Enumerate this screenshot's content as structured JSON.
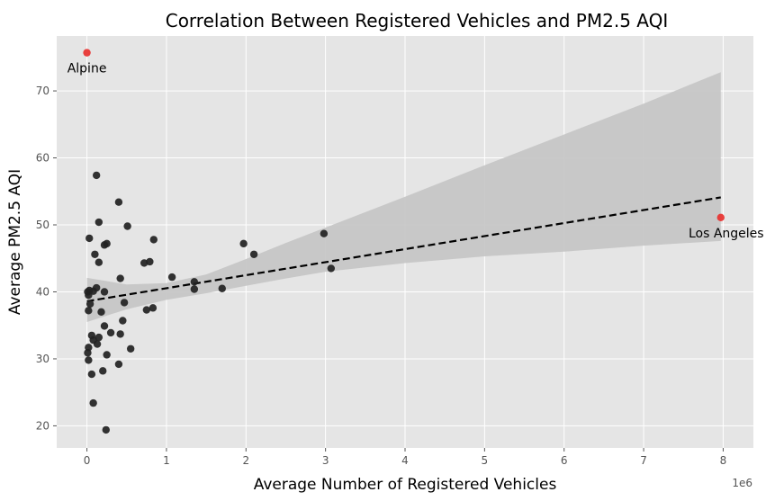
{
  "chart_data": {
    "type": "scatter",
    "title": "Correlation Between Registered Vehicles and PM2.5 AQI",
    "xlabel": "Average Number of Registered Vehicles",
    "ylabel": "Average PM2.5 AQI",
    "x_offset_label": "1e6",
    "x_scale": 1000000,
    "xlim": [
      -0.38,
      8.38
    ],
    "ylim": [
      16.7,
      78.2
    ],
    "x_ticks": [
      0,
      1,
      2,
      3,
      4,
      5,
      6,
      7,
      8
    ],
    "y_ticks": [
      20,
      30,
      40,
      50,
      60,
      70
    ],
    "grid": true,
    "background": "#e5e5e5",
    "grid_color": "#ffffff",
    "point_color": "#222222",
    "highlight_color": "#e8312f",
    "band_color": "#c4c4c4",
    "line_color": "#000000",
    "points": [
      {
        "x": 0.01,
        "y": 40.0
      },
      {
        "x": 0.02,
        "y": 39.5
      },
      {
        "x": 0.03,
        "y": 40.2
      },
      {
        "x": 0.02,
        "y": 37.2
      },
      {
        "x": 0.04,
        "y": 38.2
      },
      {
        "x": 0.03,
        "y": 48.0
      },
      {
        "x": 0.08,
        "y": 40.1
      },
      {
        "x": 0.12,
        "y": 40.6
      },
      {
        "x": 0.22,
        "y": 40.0
      },
      {
        "x": 0.12,
        "y": 57.4
      },
      {
        "x": 0.15,
        "y": 50.4
      },
      {
        "x": 0.22,
        "y": 47.0
      },
      {
        "x": 0.25,
        "y": 47.2
      },
      {
        "x": 0.1,
        "y": 45.6
      },
      {
        "x": 0.15,
        "y": 44.4
      },
      {
        "x": 0.18,
        "y": 37.0
      },
      {
        "x": 0.22,
        "y": 34.9
      },
      {
        "x": 0.06,
        "y": 33.5
      },
      {
        "x": 0.08,
        "y": 32.8
      },
      {
        "x": 0.13,
        "y": 32.2
      },
      {
        "x": 0.15,
        "y": 33.2
      },
      {
        "x": 0.3,
        "y": 33.9
      },
      {
        "x": 0.02,
        "y": 31.7
      },
      {
        "x": 0.01,
        "y": 30.9
      },
      {
        "x": 0.02,
        "y": 29.8
      },
      {
        "x": 0.06,
        "y": 27.7
      },
      {
        "x": 0.2,
        "y": 28.2
      },
      {
        "x": 0.25,
        "y": 30.6
      },
      {
        "x": 0.08,
        "y": 23.4
      },
      {
        "x": 0.24,
        "y": 19.4
      },
      {
        "x": 0.4,
        "y": 53.4
      },
      {
        "x": 0.42,
        "y": 42.0
      },
      {
        "x": 0.47,
        "y": 38.4
      },
      {
        "x": 0.45,
        "y": 35.7
      },
      {
        "x": 0.42,
        "y": 33.7
      },
      {
        "x": 0.4,
        "y": 29.2
      },
      {
        "x": 0.51,
        "y": 49.8
      },
      {
        "x": 0.55,
        "y": 31.5
      },
      {
        "x": 0.72,
        "y": 44.3
      },
      {
        "x": 0.79,
        "y": 44.5
      },
      {
        "x": 0.75,
        "y": 37.3
      },
      {
        "x": 0.84,
        "y": 47.8
      },
      {
        "x": 0.83,
        "y": 37.6
      },
      {
        "x": 1.07,
        "y": 42.2
      },
      {
        "x": 1.35,
        "y": 41.5
      },
      {
        "x": 1.35,
        "y": 40.4
      },
      {
        "x": 1.7,
        "y": 40.5
      },
      {
        "x": 1.97,
        "y": 47.2
      },
      {
        "x": 2.1,
        "y": 45.6
      },
      {
        "x": 2.98,
        "y": 48.7
      },
      {
        "x": 3.07,
        "y": 43.5
      }
    ],
    "highlights": [
      {
        "name": "Alpine",
        "x": 0.0,
        "y": 75.7
      },
      {
        "name": "Los Angeles",
        "x": 7.97,
        "y": 51.1
      }
    ],
    "regression_line": {
      "x": [
        0,
        7.97
      ],
      "y": [
        38.6,
        54.1
      ]
    },
    "confidence_band": {
      "x": [
        0,
        0.5,
        1,
        1.5,
        2,
        2.5,
        3,
        4,
        5,
        6,
        7,
        7.97
      ],
      "lower": [
        35.5,
        37.4,
        38.8,
        39.8,
        40.9,
        42.0,
        43.0,
        44.3,
        45.3,
        46.0,
        46.9,
        47.6
      ],
      "upper": [
        42.1,
        41.1,
        41.3,
        42.6,
        44.9,
        47.3,
        49.6,
        54.2,
        58.9,
        63.5,
        68.1,
        72.8
      ]
    }
  }
}
